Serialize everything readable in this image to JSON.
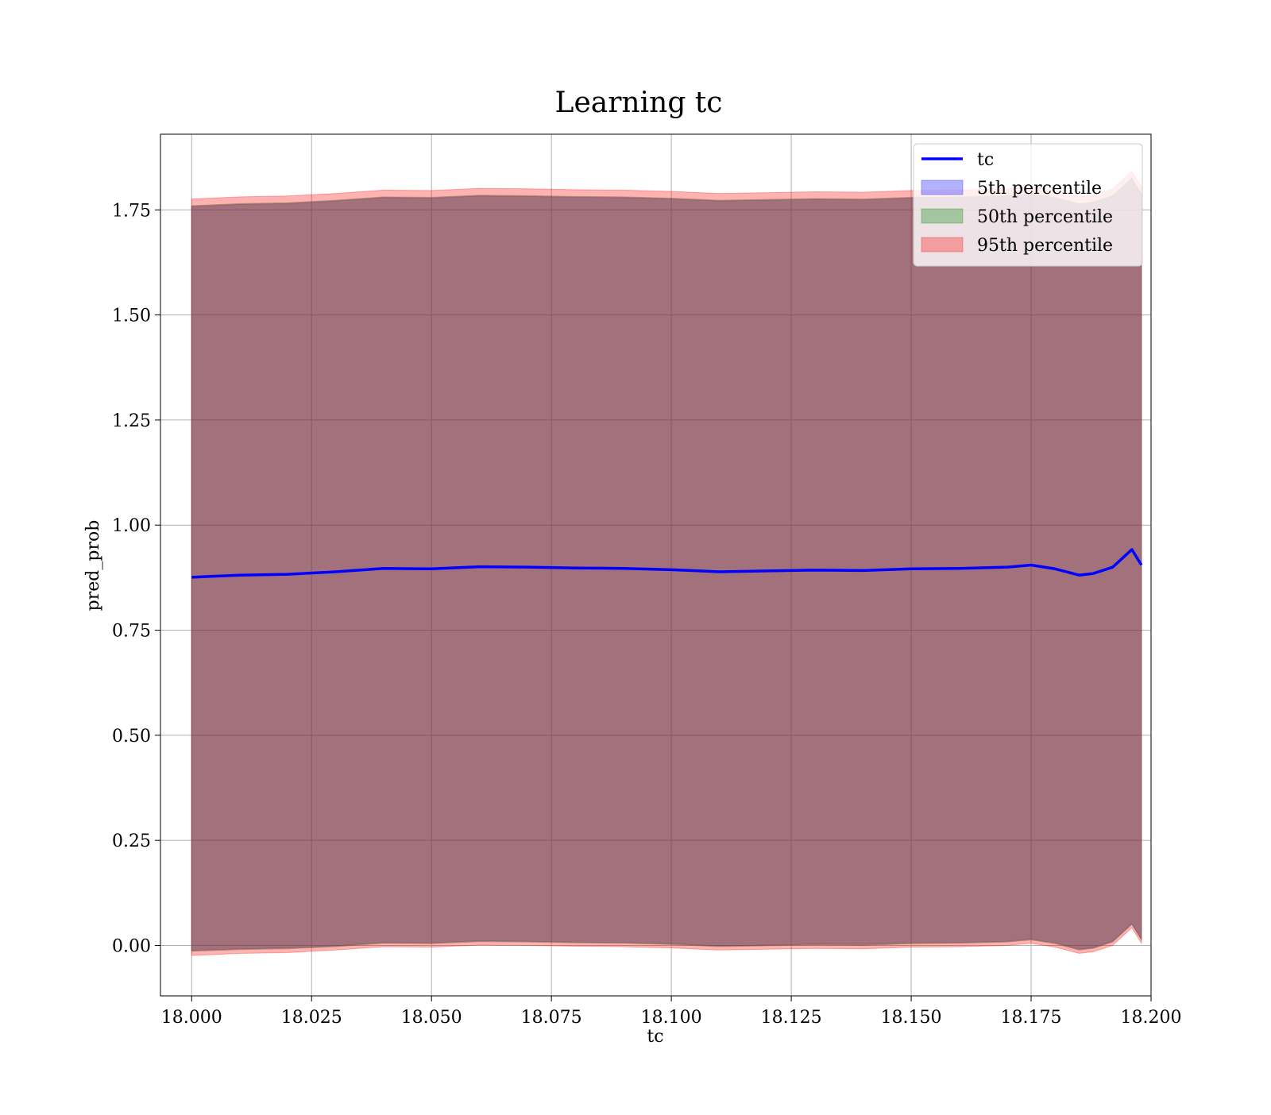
{
  "chart_data": {
    "type": "line",
    "title": "Learning tc",
    "xlabel": "tc",
    "ylabel": "pred_prob",
    "xlim": [
      17.9935,
      18.2
    ],
    "ylim": [
      -0.12,
      1.93
    ],
    "grid": true,
    "legend_position": "top-right",
    "x_ticks": [
      18.0,
      18.025,
      18.05,
      18.075,
      18.1,
      18.125,
      18.15,
      18.175,
      18.2
    ],
    "x_tick_labels": [
      "18.000",
      "18.025",
      "18.050",
      "18.075",
      "18.100",
      "18.125",
      "18.150",
      "18.175",
      "18.200"
    ],
    "y_ticks": [
      0.0,
      0.25,
      0.5,
      0.75,
      1.0,
      1.25,
      1.5,
      1.75
    ],
    "y_tick_labels": [
      "0.00",
      "0.25",
      "0.50",
      "0.75",
      "1.00",
      "1.25",
      "1.50",
      "1.75"
    ],
    "x": [
      18.0,
      18.01,
      18.02,
      18.03,
      18.04,
      18.05,
      18.06,
      18.07,
      18.08,
      18.09,
      18.1,
      18.11,
      18.12,
      18.13,
      18.14,
      18.15,
      18.16,
      18.17,
      18.175,
      18.18,
      18.185,
      18.188,
      18.192,
      18.196,
      18.198
    ],
    "series": [
      {
        "name": "tc",
        "kind": "line",
        "color": "#0000ff",
        "values": [
          0.876,
          0.881,
          0.883,
          0.889,
          0.897,
          0.896,
          0.901,
          0.9,
          0.898,
          0.897,
          0.894,
          0.889,
          0.891,
          0.893,
          0.892,
          0.896,
          0.897,
          0.9,
          0.905,
          0.896,
          0.881,
          0.885,
          0.9,
          0.942,
          0.905
        ]
      },
      {
        "name": "5th percentile",
        "kind": "band",
        "color": "#0000ff",
        "lower": [
          -0.012,
          -0.008,
          -0.006,
          -0.001,
          0.007,
          0.006,
          0.011,
          0.01,
          0.008,
          0.007,
          0.004,
          -0.001,
          0.001,
          0.003,
          0.002,
          0.006,
          0.007,
          0.01,
          0.015,
          0.006,
          -0.009,
          -0.005,
          0.01,
          0.052,
          0.015
        ],
        "upper": [
          1.758,
          1.763,
          1.765,
          1.771,
          1.779,
          1.778,
          1.783,
          1.782,
          1.78,
          1.779,
          1.776,
          1.771,
          1.773,
          1.775,
          1.774,
          1.778,
          1.779,
          1.782,
          1.787,
          1.778,
          1.763,
          1.767,
          1.782,
          1.824,
          1.787
        ]
      },
      {
        "name": "50th percentile",
        "kind": "band",
        "color": "#008000",
        "lower": [
          -0.014,
          -0.01,
          -0.008,
          -0.003,
          0.005,
          0.004,
          0.009,
          0.008,
          0.006,
          0.005,
          0.002,
          -0.003,
          -0.001,
          0.001,
          0.0,
          0.004,
          0.005,
          0.008,
          0.013,
          0.004,
          -0.011,
          -0.007,
          0.008,
          0.05,
          0.013
        ],
        "upper": [
          1.76,
          1.765,
          1.767,
          1.773,
          1.781,
          1.78,
          1.785,
          1.784,
          1.782,
          1.781,
          1.778,
          1.773,
          1.775,
          1.777,
          1.776,
          1.78,
          1.781,
          1.784,
          1.789,
          1.78,
          1.765,
          1.769,
          1.784,
          1.826,
          1.789
        ]
      },
      {
        "name": "95th percentile",
        "kind": "band",
        "color": "#ff0000",
        "lower": [
          -0.024,
          -0.019,
          -0.017,
          -0.011,
          -0.003,
          -0.004,
          0.001,
          0.0,
          -0.002,
          -0.003,
          -0.006,
          -0.011,
          -0.009,
          -0.007,
          -0.008,
          -0.004,
          -0.003,
          0.0,
          0.005,
          -0.004,
          -0.019,
          -0.015,
          0.0,
          0.042,
          0.005
        ],
        "upper": [
          1.776,
          1.781,
          1.783,
          1.789,
          1.797,
          1.796,
          1.801,
          1.8,
          1.798,
          1.797,
          1.794,
          1.789,
          1.791,
          1.793,
          1.792,
          1.796,
          1.797,
          1.8,
          1.805,
          1.796,
          1.781,
          1.785,
          1.8,
          1.842,
          1.805
        ]
      }
    ]
  }
}
